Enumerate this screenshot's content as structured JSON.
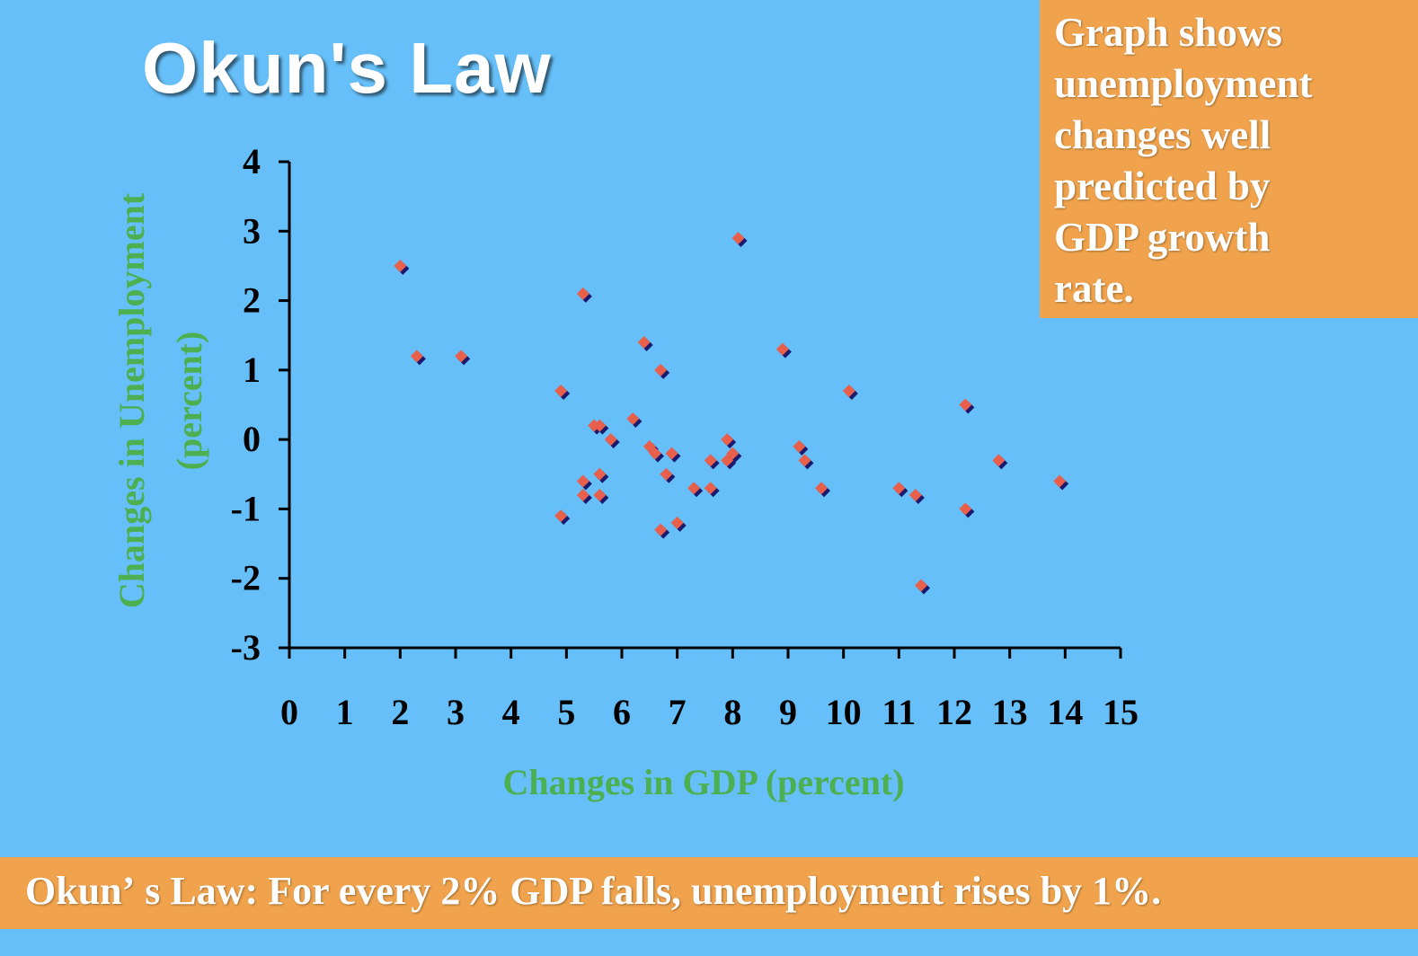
{
  "title": "Okun's Law",
  "callout_lines": [
    "Graph shows",
    "unemployment",
    "changes well",
    "predicted by",
    "GDP growth",
    "rate."
  ],
  "banner": "Okunʼ s Law: For every 2% GDP falls, unemployment rises by 1%.",
  "colors": {
    "background": "#66bff8",
    "accent": "#f0a34c",
    "axis_title": "#4caf50",
    "point_fill": "#e8604c",
    "point_shadow": "#1a1a6e"
  },
  "chart_data": {
    "type": "scatter",
    "title": "",
    "xlabel": "Changes in GDP (percent)",
    "ylabel_lines": [
      "Changes in Unemployment",
      "(percent)"
    ],
    "xlim": [
      0,
      15
    ],
    "ylim": [
      -3,
      4
    ],
    "x_ticks": [
      "0",
      "1",
      "2",
      "3",
      "4",
      "5",
      "6",
      "7",
      "8",
      "9",
      "10",
      "11",
      "12",
      "13",
      "14",
      "15"
    ],
    "y_ticks": [
      "4",
      "3",
      "2",
      "1",
      "0",
      "-1",
      "-2",
      "-3"
    ],
    "grid": false,
    "points": [
      {
        "x": 2.0,
        "y": 2.5
      },
      {
        "x": 2.3,
        "y": 1.2
      },
      {
        "x": 3.1,
        "y": 1.2
      },
      {
        "x": 4.9,
        "y": 0.7
      },
      {
        "x": 4.9,
        "y": -1.1
      },
      {
        "x": 5.3,
        "y": 2.1
      },
      {
        "x": 5.3,
        "y": -0.6
      },
      {
        "x": 5.3,
        "y": -0.8
      },
      {
        "x": 5.5,
        "y": 0.2
      },
      {
        "x": 5.6,
        "y": 0.2
      },
      {
        "x": 5.6,
        "y": -0.5
      },
      {
        "x": 5.6,
        "y": -0.8
      },
      {
        "x": 5.8,
        "y": 0.0
      },
      {
        "x": 6.2,
        "y": 0.3
      },
      {
        "x": 6.4,
        "y": 1.4
      },
      {
        "x": 6.5,
        "y": -0.1
      },
      {
        "x": 6.6,
        "y": -0.2
      },
      {
        "x": 6.7,
        "y": 1.0
      },
      {
        "x": 6.7,
        "y": -1.3
      },
      {
        "x": 6.8,
        "y": -0.5
      },
      {
        "x": 6.9,
        "y": -0.2
      },
      {
        "x": 7.0,
        "y": -1.2
      },
      {
        "x": 7.3,
        "y": -0.7
      },
      {
        "x": 7.6,
        "y": -0.3
      },
      {
        "x": 7.6,
        "y": -0.7
      },
      {
        "x": 7.9,
        "y": 0.0
      },
      {
        "x": 7.9,
        "y": -0.3
      },
      {
        "x": 8.0,
        "y": -0.2
      },
      {
        "x": 8.1,
        "y": 2.9
      },
      {
        "x": 8.9,
        "y": 1.3
      },
      {
        "x": 9.2,
        "y": -0.1
      },
      {
        "x": 9.3,
        "y": -0.3
      },
      {
        "x": 9.6,
        "y": -0.7
      },
      {
        "x": 10.1,
        "y": 0.7
      },
      {
        "x": 11.0,
        "y": -0.7
      },
      {
        "x": 11.3,
        "y": -0.8
      },
      {
        "x": 11.4,
        "y": -2.1
      },
      {
        "x": 12.2,
        "y": 0.5
      },
      {
        "x": 12.2,
        "y": -1.0
      },
      {
        "x": 12.8,
        "y": -0.3
      },
      {
        "x": 13.9,
        "y": -0.6
      }
    ]
  }
}
